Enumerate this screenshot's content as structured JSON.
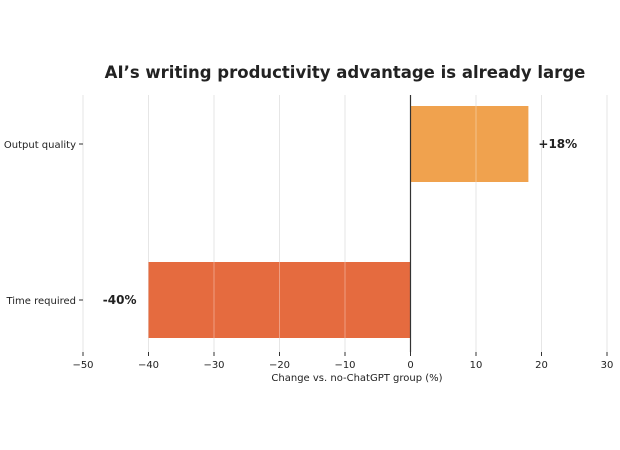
{
  "chart_data": {
    "type": "bar",
    "orientation": "horizontal",
    "title": "AI’s writing productivity advantage is already large",
    "xlabel": "Change vs. no-ChatGPT group (%)",
    "ylabel": "",
    "xlim": [
      -50,
      30
    ],
    "xticks": [
      -50,
      -40,
      -30,
      -20,
      -10,
      0,
      10,
      20,
      30
    ],
    "xtick_labels": [
      "−50",
      "−40",
      "−30",
      "−20",
      "−10",
      "0",
      "10",
      "20",
      "30"
    ],
    "grid": "vertical",
    "categories": [
      "Output quality",
      "Time required"
    ],
    "values": [
      18,
      -40
    ],
    "data_labels": [
      "+18%",
      "-40%"
    ],
    "colors": [
      "#F0A24E",
      "#E56B3F"
    ]
  }
}
